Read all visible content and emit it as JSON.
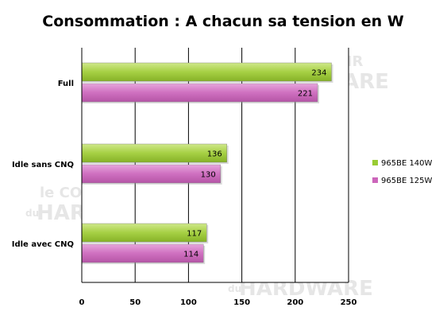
{
  "chart_data": {
    "type": "bar",
    "orientation": "horizontal",
    "title": "Consommation : A chacun sa tension en W",
    "xlabel": "",
    "ylabel": "",
    "categories": [
      "Full",
      "Idle sans CNQ",
      "Idle avec CNQ"
    ],
    "series": [
      {
        "name": "965BE 140W",
        "values": [
          234,
          136,
          117
        ],
        "color": "#99cc33"
      },
      {
        "name": "965BE 125W",
        "values": [
          221,
          130,
          114
        ],
        "color": "#cc66bb"
      }
    ],
    "xlim": [
      0,
      250
    ],
    "xticks": [
      "0",
      "50",
      "100",
      "150",
      "200",
      "250"
    ],
    "grid": true,
    "legend": "right"
  },
  "watermark": {
    "line1": "le COMPTOIR",
    "line2": "du",
    "line3": "HARDWARE"
  }
}
